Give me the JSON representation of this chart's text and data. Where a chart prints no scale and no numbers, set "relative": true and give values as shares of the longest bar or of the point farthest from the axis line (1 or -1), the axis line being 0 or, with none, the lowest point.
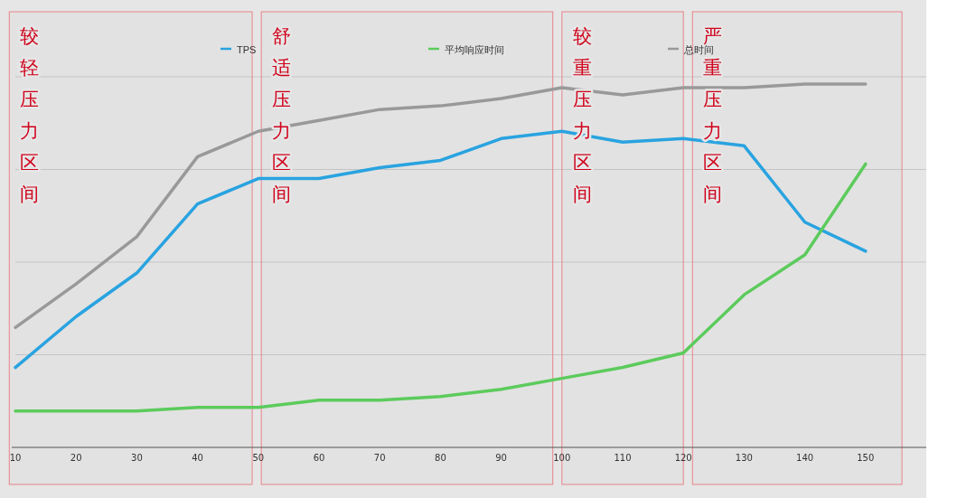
{
  "chart_data": {
    "type": "line",
    "relative": true,
    "x": [
      10,
      20,
      30,
      40,
      50,
      60,
      70,
      80,
      90,
      100,
      110,
      120,
      130,
      140,
      150
    ],
    "xlim": [
      10,
      160
    ],
    "xticks": [
      10,
      20,
      30,
      40,
      50,
      60,
      70,
      80,
      90,
      100,
      110,
      120,
      130,
      140,
      150
    ],
    "grid": "y",
    "legend": "top",
    "series": [
      {
        "name": "TPS",
        "color": "#29a3e0",
        "values": [
          0.22,
          0.36,
          0.48,
          0.67,
          0.74,
          0.74,
          0.77,
          0.79,
          0.85,
          0.87,
          0.84,
          0.85,
          0.83,
          0.62,
          0.54
        ]
      },
      {
        "name": "平均响应时间",
        "color": "#5ccb5c",
        "values": [
          0.1,
          0.1,
          0.1,
          0.11,
          0.11,
          0.13,
          0.13,
          0.14,
          0.16,
          0.19,
          0.22,
          0.26,
          0.42,
          0.53,
          0.78
        ]
      },
      {
        "name": "总时间",
        "color": "#999999",
        "values": [
          0.33,
          0.45,
          0.58,
          0.8,
          0.87,
          0.9,
          0.93,
          0.94,
          0.96,
          0.99,
          0.97,
          0.99,
          0.99,
          1.0,
          1.0
        ]
      }
    ],
    "bands": [
      {
        "axis": "x",
        "from": 9,
        "to": 49,
        "label": "较轻压力区间",
        "color": "#e8838a"
      },
      {
        "axis": "x",
        "from": 50.5,
        "to": 98.5,
        "label": "舒适压力区间",
        "color": "#e8838a"
      },
      {
        "axis": "x",
        "from": 100,
        "to": 120,
        "label": "较重压力区间",
        "color": "#e8838a"
      },
      {
        "axis": "x",
        "from": 121.5,
        "to": 156,
        "label": "严重压力区间",
        "color": "#e8838a"
      }
    ]
  }
}
